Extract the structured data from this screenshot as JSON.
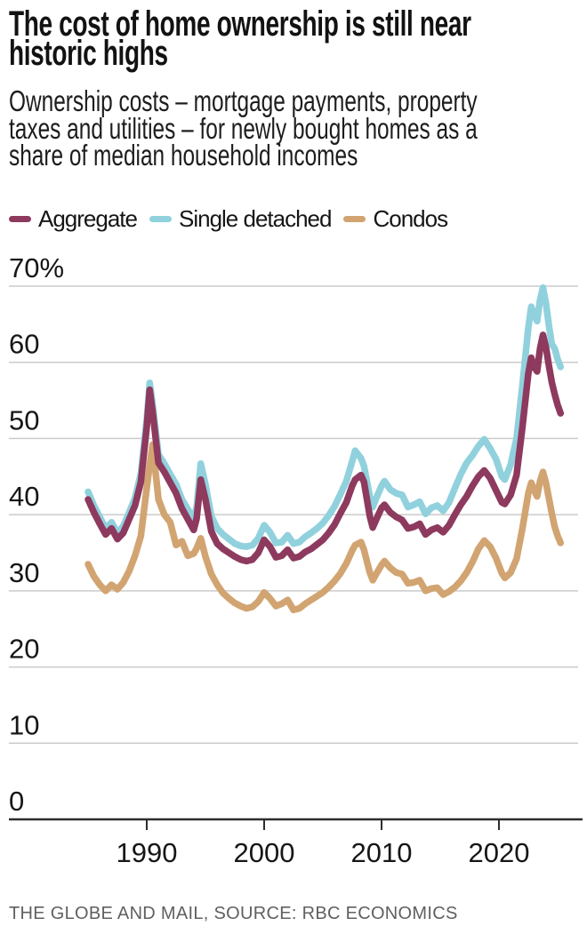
{
  "header": {
    "title_lines": [
      "The cost of home ownership is still near",
      "historic highs"
    ],
    "subtitle_lines": [
      "Ownership costs – mortgage payments, property",
      "taxes and utilities – for newly bought homes as a",
      "share of median household incomes"
    ]
  },
  "legend": {
    "items": [
      {
        "label": "Aggregate",
        "color": "#8d3a5e"
      },
      {
        "label": "Single detached",
        "color": "#90d1dd"
      },
      {
        "label": "Condos",
        "color": "#d1a471"
      }
    ]
  },
  "colors": {
    "grid": "#cbcbcb",
    "axis": "#2e2e2e",
    "text": "#161616",
    "muted": "#606060"
  },
  "chart_data": {
    "type": "line",
    "title": "The cost of home ownership is still near historic highs",
    "subtitle": "Ownership costs – mortgage payments, property taxes and utilities – for newly bought homes as a share of median household incomes",
    "xlabel": "",
    "ylabel": "",
    "grid": "horizontal",
    "legend_position": "top",
    "xlim": [
      1984.9,
      2025.5
    ],
    "ylim": [
      0,
      70
    ],
    "yticks": [
      {
        "value": 70,
        "label": "70%"
      },
      {
        "value": 60,
        "label": "60"
      },
      {
        "value": 50,
        "label": "50"
      },
      {
        "value": 40,
        "label": "40"
      },
      {
        "value": 30,
        "label": "30"
      },
      {
        "value": 20,
        "label": "20"
      },
      {
        "value": 10,
        "label": "10"
      },
      {
        "value": 0,
        "label": "0"
      }
    ],
    "xticks": [
      {
        "value": 1990,
        "label": "1990"
      },
      {
        "value": 2000,
        "label": "2000"
      },
      {
        "value": 2010,
        "label": "2010"
      },
      {
        "value": 2020,
        "label": "2020"
      }
    ],
    "x": [
      1985,
      1985.5,
      1986,
      1986.5,
      1987,
      1987.5,
      1988,
      1988.5,
      1989,
      1989.5,
      1990,
      1990.25,
      1990.5,
      1991,
      1991.5,
      1992,
      1992.5,
      1993,
      1993.5,
      1994,
      1994.25,
      1994.6,
      1995,
      1995.5,
      1996,
      1996.5,
      1997,
      1997.5,
      1998,
      1998.5,
      1999,
      1999.5,
      2000,
      2000.5,
      2001,
      2001.5,
      2002,
      2002.5,
      2003,
      2003.5,
      2004,
      2004.5,
      2005,
      2005.5,
      2006,
      2006.5,
      2007,
      2007.5,
      2007.75,
      2008.25,
      2008.5,
      2009,
      2009.25,
      2009.5,
      2010,
      2010.25,
      2010.75,
      2011.25,
      2011.75,
      2012.25,
      2012.75,
      2013.25,
      2013.75,
      2014.25,
      2014.75,
      2015.25,
      2015.75,
      2016.25,
      2016.75,
      2017.25,
      2017.75,
      2018.25,
      2018.75,
      2019.25,
      2019.75,
      2020.25,
      2020.5,
      2021,
      2021.5,
      2022,
      2022.5,
      2022.75,
      2023,
      2023.25,
      2023.5,
      2023.75,
      2024,
      2024.25,
      2024.5,
      2024.75,
      2025,
      2025.25
    ],
    "series": [
      {
        "name": "Single detached",
        "color": "#90d1dd",
        "values": [
          43.0,
          41.2,
          39.7,
          38.2,
          39.0,
          37.6,
          38.5,
          40.3,
          42.2,
          45.4,
          52.5,
          57.3,
          54.5,
          47.9,
          46.7,
          45.3,
          44.0,
          42.0,
          40.7,
          39.5,
          41.0,
          46.7,
          44.0,
          39.8,
          38.2,
          37.4,
          36.8,
          36.2,
          35.9,
          35.8,
          36.0,
          36.9,
          38.6,
          37.7,
          36.3,
          36.4,
          37.3,
          36.2,
          36.4,
          37.1,
          37.6,
          38.2,
          38.9,
          39.9,
          41.1,
          42.7,
          44.4,
          47.0,
          48.4,
          47.4,
          46.4,
          42.4,
          41.0,
          42.0,
          43.8,
          44.4,
          43.3,
          42.8,
          42.6,
          41.0,
          41.3,
          41.7,
          40.1,
          40.9,
          41.2,
          40.5,
          41.6,
          43.5,
          45.3,
          46.8,
          47.8,
          49.0,
          49.9,
          48.7,
          47.3,
          45.0,
          44.6,
          46.6,
          50.0,
          57.0,
          64.5,
          67.3,
          66.2,
          65.4,
          68.2,
          69.8,
          67.8,
          64.9,
          62.4,
          61.8,
          60.4,
          59.4
        ]
      },
      {
        "name": "Condos",
        "color": "#d1a471",
        "values": [
          33.5,
          31.9,
          30.8,
          30.0,
          30.8,
          30.2,
          31.1,
          32.6,
          34.6,
          37.2,
          43.5,
          46.5,
          49.2,
          42.0,
          40.0,
          39.0,
          36.0,
          36.5,
          34.6,
          34.9,
          35.6,
          36.9,
          34.5,
          32.2,
          30.8,
          29.7,
          29.0,
          28.4,
          28.0,
          27.7,
          27.9,
          28.6,
          29.8,
          29.0,
          28.0,
          28.3,
          28.8,
          27.5,
          27.7,
          28.3,
          28.8,
          29.3,
          29.8,
          30.5,
          31.3,
          32.3,
          33.6,
          35.3,
          36.0,
          36.4,
          35.4,
          32.4,
          31.4,
          32.1,
          33.4,
          33.9,
          33.0,
          32.4,
          32.2,
          31.0,
          31.1,
          31.4,
          30.0,
          30.3,
          30.4,
          29.5,
          29.9,
          30.5,
          31.3,
          32.4,
          33.8,
          35.5,
          36.6,
          35.8,
          34.3,
          32.3,
          31.7,
          32.4,
          34.2,
          38.2,
          42.8,
          44.2,
          43.2,
          42.4,
          44.4,
          45.6,
          44.2,
          42.2,
          40.2,
          38.4,
          37.2,
          36.3
        ]
      },
      {
        "name": "Aggregate",
        "color": "#8d3a5e",
        "values": [
          42.0,
          40.3,
          38.8,
          37.4,
          38.2,
          36.8,
          37.6,
          39.4,
          41.2,
          44.3,
          51.5,
          56.4,
          53.5,
          46.8,
          45.6,
          44.2,
          42.8,
          40.8,
          39.4,
          38.0,
          39.5,
          44.6,
          42.0,
          37.8,
          36.2,
          35.5,
          35.0,
          34.5,
          34.1,
          33.9,
          34.1,
          35.0,
          36.7,
          35.8,
          34.4,
          34.6,
          35.4,
          34.3,
          34.5,
          35.1,
          35.5,
          36.1,
          36.7,
          37.6,
          38.7,
          40.2,
          41.6,
          43.8,
          44.6,
          45.2,
          44.3,
          39.8,
          38.3,
          39.2,
          40.9,
          41.3,
          40.3,
          39.7,
          39.3,
          38.2,
          38.4,
          38.8,
          37.4,
          38.0,
          38.3,
          37.7,
          38.6,
          40.0,
          41.3,
          42.4,
          43.8,
          45.0,
          45.8,
          44.8,
          43.2,
          41.6,
          41.4,
          42.6,
          45.2,
          51.5,
          58.5,
          60.6,
          59.4,
          58.8,
          61.8,
          63.6,
          62.0,
          59.6,
          57.4,
          55.8,
          54.4,
          53.3
        ]
      }
    ]
  },
  "source": {
    "text": "THE GLOBE AND MAIL, SOURCE: RBC ECONOMICS"
  }
}
